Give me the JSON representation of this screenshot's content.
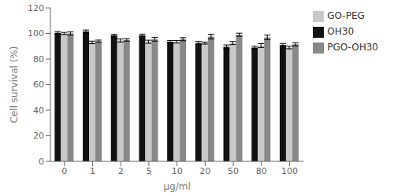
{
  "chart_data": {
    "type": "bar",
    "xlabel": "μg/ml",
    "ylabel": "Cell survival (%)",
    "categories": [
      "0",
      "1",
      "2",
      "5",
      "10",
      "20",
      "50",
      "80",
      "100"
    ],
    "series": [
      {
        "name": "OH30",
        "color": "#111111",
        "values": [
          100.5,
          101.5,
          98.5,
          98.5,
          93.5,
          92.5,
          89.5,
          89.0,
          91.0
        ],
        "errors": [
          1.0,
          1.2,
          0.8,
          1.0,
          1.0,
          1.2,
          1.5,
          1.0,
          1.2
        ]
      },
      {
        "name": "GO-PEG",
        "color": "#c8c8c8",
        "values": [
          100.0,
          93.0,
          94.5,
          93.5,
          93.5,
          92.5,
          92.5,
          90.5,
          89.0
        ],
        "errors": [
          0.8,
          1.0,
          1.2,
          1.2,
          1.0,
          0.8,
          1.2,
          1.5,
          1.0
        ]
      },
      {
        "name": "PGO-OH30",
        "color": "#888888",
        "values": [
          100.0,
          94.0,
          95.0,
          95.5,
          95.5,
          97.5,
          99.0,
          97.0,
          91.5
        ],
        "errors": [
          1.2,
          0.8,
          1.0,
          1.5,
          1.2,
          1.8,
          1.2,
          1.8,
          1.2
        ]
      }
    ],
    "ylim": [
      0,
      120
    ],
    "yticks": [
      0,
      20,
      40,
      60,
      80,
      100,
      120
    ],
    "grid": false,
    "legend": "right"
  }
}
